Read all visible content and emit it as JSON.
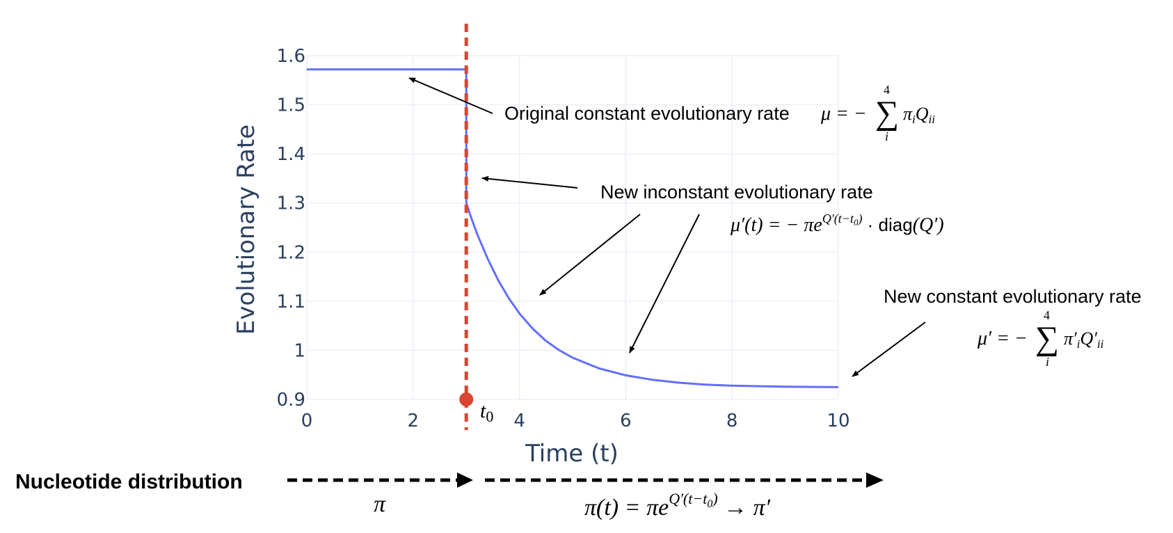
{
  "chart_data": {
    "type": "line",
    "xlabel": "Time (t)",
    "ylabel": "Evolutionary Rate",
    "xlim": [
      0,
      10
    ],
    "ylim": [
      0.9,
      1.6
    ],
    "xticks": [
      "0",
      "2",
      "4",
      "6",
      "8",
      "10"
    ],
    "yticks": [
      "0.9",
      "1",
      "1.1",
      "1.2",
      "1.3",
      "1.4",
      "1.5",
      "1.6"
    ],
    "grid": true,
    "series_color": "#636efa",
    "t0_color": "#d94631",
    "t0": 3,
    "t0_label": "t",
    "t0_label_sub": "0",
    "series": [
      {
        "x": [
          0,
          3,
          3,
          3.1,
          3.2,
          3.4,
          3.6,
          3.8,
          4.0,
          4.25,
          4.5,
          4.75,
          5.0,
          5.5,
          6.0,
          6.5,
          7.0,
          7.5,
          8.0,
          9.0,
          10.0
        ],
        "y": [
          1.572,
          1.572,
          1.3,
          1.268,
          1.238,
          1.187,
          1.143,
          1.106,
          1.075,
          1.044,
          1.019,
          1.0,
          0.985,
          0.963,
          0.949,
          0.94,
          0.934,
          0.93,
          0.928,
          0.926,
          0.925
        ]
      }
    ],
    "annotations": {
      "original": "Original constant evolutionary rate",
      "new_inconstant": "New inconstant evolutionary rate",
      "new_constant": "New constant evolutionary rate"
    },
    "formulas": {
      "mu": "μ = − Σ π_i Q_ii",
      "mu_t": "μ′(t) = − πe^{Q′(t−t0)} · diag(Q′)",
      "mu_prime": "μ′ = − Σ π′_i Q′_ii",
      "sum_top": "4",
      "sum_bottom": "i"
    },
    "nucleotide": {
      "label": "Nucleotide distribution",
      "pi": "π",
      "pi_t": "π(t) = πe^{Q′(t−t0)} → π′"
    }
  }
}
